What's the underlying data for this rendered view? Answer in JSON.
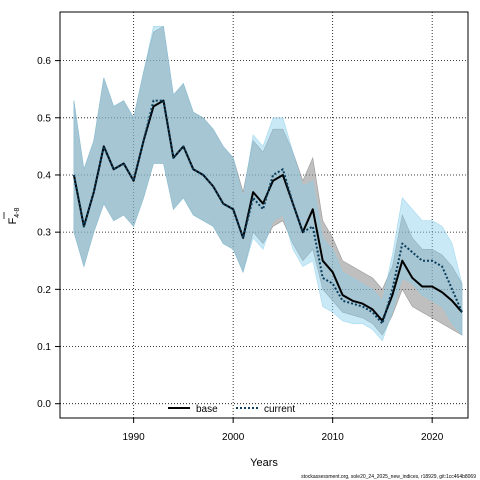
{
  "chart_data": {
    "type": "line",
    "xlabel": "Years",
    "ylabel": "F",
    "ylabel_sub": "4-8",
    "xlim": [
      1982.6,
      2023.6
    ],
    "ylim": [
      -0.025,
      0.685
    ],
    "x_ticks": [
      1990,
      2000,
      2010,
      2020
    ],
    "y_ticks": [
      0.0,
      0.1,
      0.2,
      0.3,
      0.4,
      0.5,
      0.6
    ],
    "grid": true,
    "legend_position": "bottom-center",
    "x": [
      1984,
      1985,
      1986,
      1987,
      1988,
      1989,
      1990,
      1991,
      1992,
      1993,
      1994,
      1995,
      1996,
      1997,
      1998,
      1999,
      2000,
      2001,
      2002,
      2003,
      2004,
      2005,
      2006,
      2007,
      2008,
      2009,
      2010,
      2011,
      2012,
      2013,
      2014,
      2015,
      2016,
      2017,
      2018,
      2019,
      2020,
      2021,
      2022,
      2023
    ],
    "series": [
      {
        "name": "base",
        "color": "#000000",
        "band_color": "#7f7f7f",
        "values": [
          0.4,
          0.31,
          0.37,
          0.45,
          0.41,
          0.42,
          0.39,
          0.46,
          0.52,
          0.53,
          0.43,
          0.45,
          0.41,
          0.4,
          0.38,
          0.35,
          0.34,
          0.29,
          0.37,
          0.35,
          0.39,
          0.4,
          0.35,
          0.3,
          0.34,
          0.25,
          0.23,
          0.19,
          0.18,
          0.175,
          0.165,
          0.145,
          0.19,
          0.25,
          0.22,
          0.205,
          0.205,
          0.195,
          0.18,
          0.16
        ],
        "lower": [
          0.3,
          0.24,
          0.3,
          0.35,
          0.32,
          0.33,
          0.31,
          0.36,
          0.42,
          0.42,
          0.34,
          0.36,
          0.33,
          0.32,
          0.31,
          0.28,
          0.27,
          0.23,
          0.3,
          0.28,
          0.31,
          0.32,
          0.28,
          0.25,
          0.27,
          0.2,
          0.18,
          0.16,
          0.155,
          0.15,
          0.14,
          0.12,
          0.155,
          0.2,
          0.17,
          0.16,
          0.15,
          0.14,
          0.13,
          0.12
        ],
        "upper": [
          0.53,
          0.41,
          0.46,
          0.57,
          0.52,
          0.53,
          0.5,
          0.58,
          0.65,
          0.66,
          0.54,
          0.56,
          0.51,
          0.5,
          0.48,
          0.45,
          0.43,
          0.37,
          0.46,
          0.44,
          0.48,
          0.48,
          0.44,
          0.39,
          0.43,
          0.32,
          0.29,
          0.25,
          0.24,
          0.23,
          0.22,
          0.2,
          0.24,
          0.33,
          0.29,
          0.27,
          0.27,
          0.26,
          0.24,
          0.21
        ]
      },
      {
        "name": "current",
        "color": "#0b3d5c",
        "band_color": "#87ceeb",
        "values": [
          0.4,
          0.31,
          0.37,
          0.45,
          0.41,
          0.42,
          0.39,
          0.46,
          0.53,
          0.53,
          0.43,
          0.45,
          0.41,
          0.4,
          0.38,
          0.35,
          0.34,
          0.29,
          0.36,
          0.34,
          0.4,
          0.41,
          0.35,
          0.3,
          0.31,
          0.22,
          0.21,
          0.18,
          0.175,
          0.17,
          0.16,
          0.14,
          0.2,
          0.28,
          0.265,
          0.25,
          0.25,
          0.24,
          0.2,
          0.16
        ],
        "lower": [
          0.3,
          0.24,
          0.3,
          0.35,
          0.32,
          0.33,
          0.31,
          0.36,
          0.42,
          0.42,
          0.34,
          0.36,
          0.33,
          0.32,
          0.31,
          0.28,
          0.27,
          0.23,
          0.29,
          0.27,
          0.32,
          0.33,
          0.27,
          0.24,
          0.25,
          0.17,
          0.16,
          0.145,
          0.14,
          0.14,
          0.13,
          0.11,
          0.16,
          0.22,
          0.21,
          0.19,
          0.18,
          0.17,
          0.14,
          0.12
        ],
        "upper": [
          0.53,
          0.41,
          0.46,
          0.57,
          0.52,
          0.53,
          0.5,
          0.58,
          0.66,
          0.66,
          0.54,
          0.56,
          0.51,
          0.5,
          0.48,
          0.45,
          0.43,
          0.36,
          0.47,
          0.45,
          0.5,
          0.5,
          0.44,
          0.38,
          0.39,
          0.29,
          0.27,
          0.23,
          0.22,
          0.21,
          0.2,
          0.18,
          0.26,
          0.36,
          0.34,
          0.32,
          0.32,
          0.31,
          0.28,
          0.21
        ]
      }
    ]
  },
  "footnote": "stockassessment.org, sole20_24_2025_new_indices, r18929, git:1cc464b8069"
}
